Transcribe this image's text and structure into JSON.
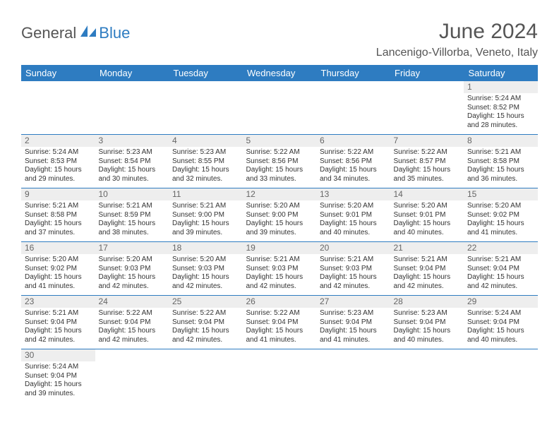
{
  "brand": {
    "text_a": "General",
    "text_b": "Blue"
  },
  "title": "June 2024",
  "location": "Lancenigo-Villorba, Veneto, Italy",
  "colors": {
    "header_bg": "#2e7cc1",
    "header_text": "#ffffff",
    "border": "#2e7cc1",
    "alt_row_bg": "#f1f1f1",
    "text": "#333333",
    "title_text": "#555555"
  },
  "weekdays": [
    "Sunday",
    "Monday",
    "Tuesday",
    "Wednesday",
    "Thursday",
    "Friday",
    "Saturday"
  ],
  "weeks": [
    [
      null,
      null,
      null,
      null,
      null,
      null,
      {
        "n": "1",
        "sr": "Sunrise: 5:24 AM",
        "ss": "Sunset: 8:52 PM",
        "dl": "Daylight: 15 hours and 28 minutes."
      }
    ],
    [
      {
        "n": "2",
        "sr": "Sunrise: 5:24 AM",
        "ss": "Sunset: 8:53 PM",
        "dl": "Daylight: 15 hours and 29 minutes."
      },
      {
        "n": "3",
        "sr": "Sunrise: 5:23 AM",
        "ss": "Sunset: 8:54 PM",
        "dl": "Daylight: 15 hours and 30 minutes."
      },
      {
        "n": "4",
        "sr": "Sunrise: 5:23 AM",
        "ss": "Sunset: 8:55 PM",
        "dl": "Daylight: 15 hours and 32 minutes."
      },
      {
        "n": "5",
        "sr": "Sunrise: 5:22 AM",
        "ss": "Sunset: 8:56 PM",
        "dl": "Daylight: 15 hours and 33 minutes."
      },
      {
        "n": "6",
        "sr": "Sunrise: 5:22 AM",
        "ss": "Sunset: 8:56 PM",
        "dl": "Daylight: 15 hours and 34 minutes."
      },
      {
        "n": "7",
        "sr": "Sunrise: 5:22 AM",
        "ss": "Sunset: 8:57 PM",
        "dl": "Daylight: 15 hours and 35 minutes."
      },
      {
        "n": "8",
        "sr": "Sunrise: 5:21 AM",
        "ss": "Sunset: 8:58 PM",
        "dl": "Daylight: 15 hours and 36 minutes."
      }
    ],
    [
      {
        "n": "9",
        "sr": "Sunrise: 5:21 AM",
        "ss": "Sunset: 8:58 PM",
        "dl": "Daylight: 15 hours and 37 minutes."
      },
      {
        "n": "10",
        "sr": "Sunrise: 5:21 AM",
        "ss": "Sunset: 8:59 PM",
        "dl": "Daylight: 15 hours and 38 minutes."
      },
      {
        "n": "11",
        "sr": "Sunrise: 5:21 AM",
        "ss": "Sunset: 9:00 PM",
        "dl": "Daylight: 15 hours and 39 minutes."
      },
      {
        "n": "12",
        "sr": "Sunrise: 5:20 AM",
        "ss": "Sunset: 9:00 PM",
        "dl": "Daylight: 15 hours and 39 minutes."
      },
      {
        "n": "13",
        "sr": "Sunrise: 5:20 AM",
        "ss": "Sunset: 9:01 PM",
        "dl": "Daylight: 15 hours and 40 minutes."
      },
      {
        "n": "14",
        "sr": "Sunrise: 5:20 AM",
        "ss": "Sunset: 9:01 PM",
        "dl": "Daylight: 15 hours and 40 minutes."
      },
      {
        "n": "15",
        "sr": "Sunrise: 5:20 AM",
        "ss": "Sunset: 9:02 PM",
        "dl": "Daylight: 15 hours and 41 minutes."
      }
    ],
    [
      {
        "n": "16",
        "sr": "Sunrise: 5:20 AM",
        "ss": "Sunset: 9:02 PM",
        "dl": "Daylight: 15 hours and 41 minutes."
      },
      {
        "n": "17",
        "sr": "Sunrise: 5:20 AM",
        "ss": "Sunset: 9:03 PM",
        "dl": "Daylight: 15 hours and 42 minutes."
      },
      {
        "n": "18",
        "sr": "Sunrise: 5:20 AM",
        "ss": "Sunset: 9:03 PM",
        "dl": "Daylight: 15 hours and 42 minutes."
      },
      {
        "n": "19",
        "sr": "Sunrise: 5:21 AM",
        "ss": "Sunset: 9:03 PM",
        "dl": "Daylight: 15 hours and 42 minutes."
      },
      {
        "n": "20",
        "sr": "Sunrise: 5:21 AM",
        "ss": "Sunset: 9:03 PM",
        "dl": "Daylight: 15 hours and 42 minutes."
      },
      {
        "n": "21",
        "sr": "Sunrise: 5:21 AM",
        "ss": "Sunset: 9:04 PM",
        "dl": "Daylight: 15 hours and 42 minutes."
      },
      {
        "n": "22",
        "sr": "Sunrise: 5:21 AM",
        "ss": "Sunset: 9:04 PM",
        "dl": "Daylight: 15 hours and 42 minutes."
      }
    ],
    [
      {
        "n": "23",
        "sr": "Sunrise: 5:21 AM",
        "ss": "Sunset: 9:04 PM",
        "dl": "Daylight: 15 hours and 42 minutes."
      },
      {
        "n": "24",
        "sr": "Sunrise: 5:22 AM",
        "ss": "Sunset: 9:04 PM",
        "dl": "Daylight: 15 hours and 42 minutes."
      },
      {
        "n": "25",
        "sr": "Sunrise: 5:22 AM",
        "ss": "Sunset: 9:04 PM",
        "dl": "Daylight: 15 hours and 42 minutes."
      },
      {
        "n": "26",
        "sr": "Sunrise: 5:22 AM",
        "ss": "Sunset: 9:04 PM",
        "dl": "Daylight: 15 hours and 41 minutes."
      },
      {
        "n": "27",
        "sr": "Sunrise: 5:23 AM",
        "ss": "Sunset: 9:04 PM",
        "dl": "Daylight: 15 hours and 41 minutes."
      },
      {
        "n": "28",
        "sr": "Sunrise: 5:23 AM",
        "ss": "Sunset: 9:04 PM",
        "dl": "Daylight: 15 hours and 40 minutes."
      },
      {
        "n": "29",
        "sr": "Sunrise: 5:24 AM",
        "ss": "Sunset: 9:04 PM",
        "dl": "Daylight: 15 hours and 40 minutes."
      }
    ],
    [
      {
        "n": "30",
        "sr": "Sunrise: 5:24 AM",
        "ss": "Sunset: 9:04 PM",
        "dl": "Daylight: 15 hours and 39 minutes."
      },
      null,
      null,
      null,
      null,
      null,
      null
    ]
  ]
}
